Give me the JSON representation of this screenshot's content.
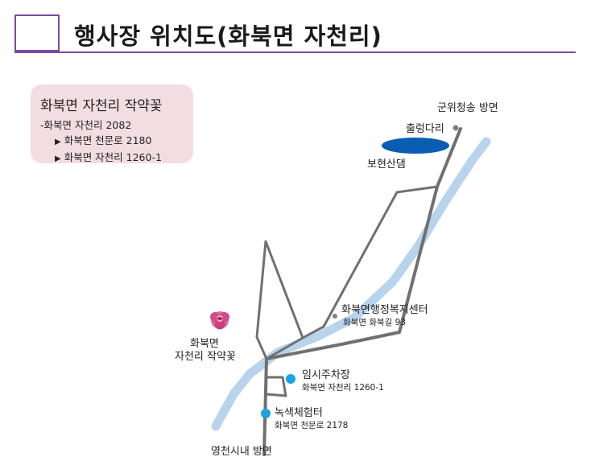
{
  "header": {
    "title": "행사장 위치도(화북면 자천리)"
  },
  "info_card": {
    "name": "화북면 자천리 작약꽃",
    "address": "-화북면 자천리 2082",
    "routes": [
      "화북면 천문로 2180",
      "화북면 자천리 1260-1"
    ]
  },
  "map": {
    "labels": {
      "gunwi_direction": "군위청송 방면",
      "chulryeong_bridge": "출렁다리",
      "bohyeon_dam": "보현산댐",
      "admin_center": "화북면행정복지센터",
      "admin_center_addr": "화북면 화북길 93",
      "peony_line1": "화북면",
      "peony_line2": "자천리 작약꽃",
      "temp_parking": "임시주차장",
      "temp_parking_addr": "화북면 자천리 1260-1",
      "green_experience": "녹색체험터",
      "green_experience_addr": "화북면 천문로 2178",
      "yeongcheon_direction": "영천시내 방면"
    },
    "colors": {
      "road": "#707070",
      "river": "#b8d4ec",
      "dam": "#0a5db2",
      "poi_marker": "#1aa3e0",
      "accent": "#7b4a9e",
      "card_bg": "#f2dde3"
    }
  }
}
